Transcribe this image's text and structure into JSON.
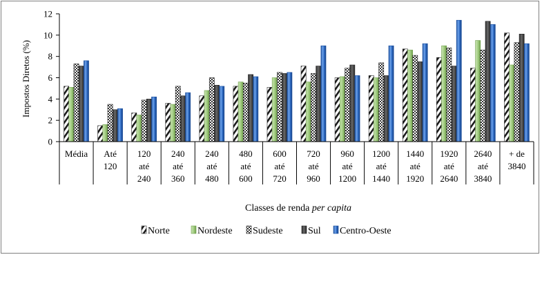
{
  "chart_data": {
    "type": "bar",
    "ylabel": "Impostos Diretos (%)",
    "xlabel_parts": [
      "Classes de renda ",
      "per capita"
    ],
    "ylim": [
      0,
      12
    ],
    "yticks": [
      0,
      2,
      4,
      6,
      8,
      10,
      12
    ],
    "legend_position": "bottom",
    "categories": [
      [
        "Média"
      ],
      [
        "Até",
        "120"
      ],
      [
        "120",
        "até",
        "240"
      ],
      [
        "240",
        "até",
        "360"
      ],
      [
        "240",
        "até",
        "480"
      ],
      [
        "480",
        "até",
        "600"
      ],
      [
        "600",
        "até",
        "720"
      ],
      [
        "720",
        "até",
        "960"
      ],
      [
        "960",
        "até",
        "1200"
      ],
      [
        "1200",
        "até",
        "1440"
      ],
      [
        "1440",
        "até",
        "1920"
      ],
      [
        "1920",
        "até",
        "2640"
      ],
      [
        "2640",
        "até",
        "3840"
      ],
      [
        "+ de",
        "3840"
      ]
    ],
    "series": [
      {
        "name": "Norte",
        "pattern": "diagonal",
        "color": "#1a1a1a",
        "values": [
          5.2,
          1.5,
          2.7,
          3.6,
          4.3,
          5.2,
          5.1,
          7.1,
          6.0,
          6.2,
          8.7,
          7.9,
          6.9,
          10.2
        ]
      },
      {
        "name": "Nordeste",
        "pattern": "green",
        "color": "#8fbe6b",
        "values": [
          5.1,
          1.6,
          2.5,
          3.5,
          4.8,
          5.6,
          6.0,
          5.6,
          6.1,
          6.0,
          8.6,
          9.0,
          9.5,
          7.2
        ]
      },
      {
        "name": "Sudeste",
        "pattern": "checker",
        "color": "#333333",
        "values": [
          7.3,
          3.5,
          3.9,
          5.2,
          6.0,
          5.5,
          6.5,
          6.4,
          6.9,
          7.4,
          8.1,
          8.8,
          8.6,
          9.3
        ]
      },
      {
        "name": "Sul",
        "pattern": "dark",
        "color": "#3c3c3c",
        "values": [
          7.1,
          3.0,
          4.0,
          4.3,
          5.3,
          6.3,
          6.4,
          7.1,
          7.2,
          6.2,
          7.5,
          7.1,
          11.3,
          10.1
        ]
      },
      {
        "name": "Centro-Oeste",
        "pattern": "blue",
        "color": "#2e6bc4",
        "values": [
          7.6,
          3.1,
          4.2,
          4.6,
          5.2,
          6.1,
          6.5,
          9.0,
          6.2,
          9.0,
          9.2,
          11.4,
          11.0,
          9.2
        ]
      }
    ]
  }
}
